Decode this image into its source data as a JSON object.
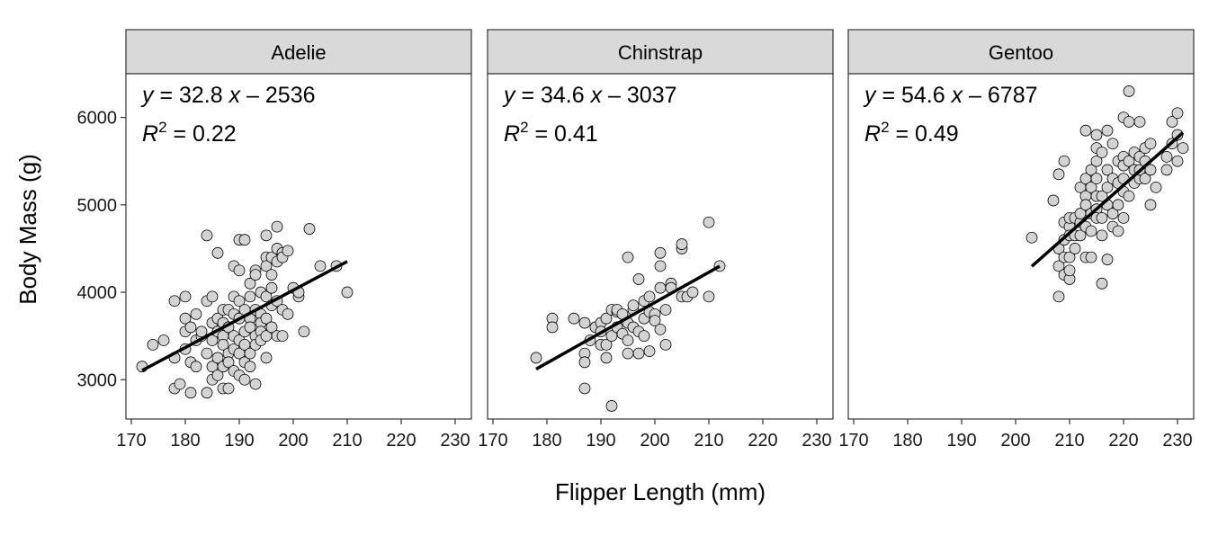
{
  "chart_data": {
    "type": "scatter",
    "xlabel": "Flipper Length (mm)",
    "ylabel": "Body Mass (g)",
    "xlim": [
      169,
      233
    ],
    "ylim": [
      2550,
      6500
    ],
    "xticks": [
      170,
      180,
      190,
      200,
      210,
      220,
      230
    ],
    "yticks": [
      3000,
      4000,
      5000,
      6000
    ],
    "grid": false,
    "point_color": "#d3d3d3",
    "point_edge_color": "#000000",
    "strip_color": "#d9d9d9",
    "line_color": "#000000",
    "panels": [
      {
        "name": "Adelie",
        "equation": {
          "y": "y",
          "eq": " = 32.8 ",
          "x": "x",
          "rest": " – 2536"
        },
        "r2": {
          "r": "R",
          "sup": "2",
          "rest": " = 0.22"
        },
        "fit": {
          "slope": 32.8,
          "intercept": -2536,
          "x_range": [
            172,
            210
          ]
        },
        "points": [
          [
            172,
            3150
          ],
          [
            174,
            3400
          ],
          [
            176,
            3450
          ],
          [
            178,
            3900
          ],
          [
            178,
            3250
          ],
          [
            178,
            2900
          ],
          [
            179,
            2950
          ],
          [
            180,
            3950
          ],
          [
            180,
            3700
          ],
          [
            180,
            3550
          ],
          [
            180,
            3350
          ],
          [
            181,
            3200
          ],
          [
            181,
            3600
          ],
          [
            181,
            2850
          ],
          [
            182,
            3450
          ],
          [
            182,
            3750
          ],
          [
            182,
            3150
          ],
          [
            183,
            3500
          ],
          [
            183,
            3550
          ],
          [
            184,
            4650
          ],
          [
            184,
            3900
          ],
          [
            184,
            3300
          ],
          [
            184,
            2850
          ],
          [
            185,
            3950
          ],
          [
            185,
            3650
          ],
          [
            185,
            3450
          ],
          [
            185,
            3150
          ],
          [
            185,
            3000
          ],
          [
            186,
            3700
          ],
          [
            186,
            3250
          ],
          [
            186,
            4450
          ],
          [
            186,
            3550
          ],
          [
            186,
            3050
          ],
          [
            187,
            3800
          ],
          [
            187,
            3500
          ],
          [
            187,
            3150
          ],
          [
            187,
            2900
          ],
          [
            187,
            3400
          ],
          [
            187,
            3650
          ],
          [
            188,
            3300
          ],
          [
            188,
            3600
          ],
          [
            188,
            3200
          ],
          [
            188,
            3800
          ],
          [
            188,
            2900
          ],
          [
            189,
            3500
          ],
          [
            189,
            3950
          ],
          [
            189,
            3350
          ],
          [
            189,
            3100
          ],
          [
            189,
            4300
          ],
          [
            189,
            3750
          ],
          [
            190,
            4600
          ],
          [
            190,
            4250
          ],
          [
            190,
            3700
          ],
          [
            190,
            3450
          ],
          [
            190,
            3300
          ],
          [
            190,
            3050
          ],
          [
            190,
            3900
          ],
          [
            191,
            3800
          ],
          [
            191,
            3550
          ],
          [
            191,
            3200
          ],
          [
            191,
            4600
          ],
          [
            191,
            3000
          ],
          [
            191,
            3400
          ],
          [
            192,
            3950
          ],
          [
            192,
            3700
          ],
          [
            192,
            3600
          ],
          [
            192,
            3300
          ],
          [
            192,
            4100
          ],
          [
            192,
            3150
          ],
          [
            193,
            4250
          ],
          [
            193,
            3800
          ],
          [
            193,
            3500
          ],
          [
            193,
            3400
          ],
          [
            193,
            2950
          ],
          [
            193,
            4200
          ],
          [
            194,
            4000
          ],
          [
            194,
            3750
          ],
          [
            194,
            3650
          ],
          [
            194,
            3550
          ],
          [
            194,
            3450
          ],
          [
            195,
            4400
          ],
          [
            195,
            4300
          ],
          [
            195,
            3950
          ],
          [
            195,
            3700
          ],
          [
            195,
            3500
          ],
          [
            195,
            3250
          ],
          [
            195,
            4650
          ],
          [
            196,
            4400
          ],
          [
            196,
            4050
          ],
          [
            196,
            3850
          ],
          [
            196,
            3600
          ],
          [
            196,
            4200
          ],
          [
            197,
            4750
          ],
          [
            197,
            4500
          ],
          [
            197,
            4350
          ],
          [
            197,
            3900
          ],
          [
            197,
            3500
          ],
          [
            198,
            4450
          ],
          [
            198,
            4400
          ],
          [
            198,
            3800
          ],
          [
            198,
            3500
          ],
          [
            199,
            4475
          ],
          [
            199,
            3750
          ],
          [
            200,
            4050
          ],
          [
            201,
            3950
          ],
          [
            201,
            4000
          ],
          [
            202,
            3550
          ],
          [
            203,
            4725
          ],
          [
            205,
            4300
          ],
          [
            208,
            4300
          ],
          [
            210,
            4000
          ]
        ]
      },
      {
        "name": "Chinstrap",
        "equation": {
          "y": "y",
          "eq": " = 34.6 ",
          "x": "x",
          "rest": " – 3037"
        },
        "r2": {
          "r": "R",
          "sup": "2",
          "rest": " = 0.41"
        },
        "fit": {
          "slope": 34.6,
          "intercept": -3037,
          "x_range": [
            178,
            212
          ]
        },
        "points": [
          [
            178,
            3250
          ],
          [
            181,
            3700
          ],
          [
            181,
            3600
          ],
          [
            185,
            3700
          ],
          [
            187,
            3650
          ],
          [
            187,
            3300
          ],
          [
            187,
            3200
          ],
          [
            187,
            2900
          ],
          [
            188,
            3450
          ],
          [
            189,
            3600
          ],
          [
            190,
            3650
          ],
          [
            190,
            3550
          ],
          [
            190,
            3400
          ],
          [
            191,
            3400
          ],
          [
            191,
            3700
          ],
          [
            191,
            3250
          ],
          [
            192,
            3800
          ],
          [
            192,
            3500
          ],
          [
            192,
            2700
          ],
          [
            193,
            3775
          ],
          [
            193,
            3800
          ],
          [
            193,
            3600
          ],
          [
            194,
            3750
          ],
          [
            194,
            3525
          ],
          [
            195,
            3650
          ],
          [
            195,
            4400
          ],
          [
            195,
            3300
          ],
          [
            195,
            3450
          ],
          [
            196,
            3800
          ],
          [
            196,
            3850
          ],
          [
            196,
            3600
          ],
          [
            197,
            3550
          ],
          [
            197,
            4150
          ],
          [
            197,
            3300
          ],
          [
            198,
            3900
          ],
          [
            198,
            3700
          ],
          [
            198,
            3500
          ],
          [
            199,
            3950
          ],
          [
            199,
            3775
          ],
          [
            199,
            3325
          ],
          [
            200,
            3750
          ],
          [
            200,
            3675
          ],
          [
            201,
            4450
          ],
          [
            201,
            4300
          ],
          [
            201,
            4050
          ],
          [
            201,
            3575
          ],
          [
            202,
            3800
          ],
          [
            202,
            3400
          ],
          [
            203,
            4100
          ],
          [
            203,
            4050
          ],
          [
            205,
            3950
          ],
          [
            205,
            4500
          ],
          [
            205,
            4550
          ],
          [
            206,
            3950
          ],
          [
            207,
            4000
          ],
          [
            210,
            4800
          ],
          [
            210,
            3950
          ],
          [
            212,
            4300
          ]
        ]
      },
      {
        "name": "Gentoo",
        "equation": {
          "y": "y",
          "eq": " = 54.6 ",
          "x": "x",
          "rest": " – 6787"
        },
        "r2": {
          "r": "R",
          "sup": "2",
          "rest": " = 0.49"
        },
        "fit": {
          "slope": 54.6,
          "intercept": -6787,
          "x_range": [
            203,
            231
          ]
        },
        "points": [
          [
            203,
            4625
          ],
          [
            207,
            5050
          ],
          [
            208,
            5350
          ],
          [
            208,
            4500
          ],
          [
            208,
            4300
          ],
          [
            208,
            3950
          ],
          [
            209,
            5500
          ],
          [
            209,
            4800
          ],
          [
            209,
            4600
          ],
          [
            209,
            4400
          ],
          [
            209,
            4200
          ],
          [
            210,
            4750
          ],
          [
            210,
            4850
          ],
          [
            210,
            4650
          ],
          [
            210,
            4400
          ],
          [
            210,
            4150
          ],
          [
            210,
            4250
          ],
          [
            211,
            4650
          ],
          [
            211,
            4500
          ],
          [
            211,
            4850
          ],
          [
            212,
            5200
          ],
          [
            212,
            4800
          ],
          [
            212,
            4650
          ],
          [
            212,
            4900
          ],
          [
            213,
            5850
          ],
          [
            213,
            5100
          ],
          [
            213,
            5000
          ],
          [
            213,
            4750
          ],
          [
            213,
            4400
          ],
          [
            213,
            5300
          ],
          [
            214,
            5400
          ],
          [
            214,
            5200
          ],
          [
            214,
            4700
          ],
          [
            214,
            4900
          ],
          [
            214,
            4400
          ],
          [
            215,
            5650
          ],
          [
            215,
            5500
          ],
          [
            215,
            5300
          ],
          [
            215,
            5100
          ],
          [
            215,
            4950
          ],
          [
            215,
            4850
          ],
          [
            215,
            5800
          ],
          [
            216,
            5600
          ],
          [
            216,
            5100
          ],
          [
            216,
            4650
          ],
          [
            216,
            4100
          ],
          [
            216,
            4850
          ],
          [
            217,
            5850
          ],
          [
            217,
            5400
          ],
          [
            217,
            5000
          ],
          [
            217,
            4375
          ],
          [
            217,
            5200
          ],
          [
            218,
            5700
          ],
          [
            218,
            5300
          ],
          [
            218,
            4900
          ],
          [
            218,
            4750
          ],
          [
            219,
            5500
          ],
          [
            219,
            5250
          ],
          [
            219,
            5000
          ],
          [
            219,
            4700
          ],
          [
            220,
            6000
          ],
          [
            220,
            5550
          ],
          [
            220,
            5300
          ],
          [
            220,
            5150
          ],
          [
            220,
            4850
          ],
          [
            220,
            5450
          ],
          [
            221,
            6300
          ],
          [
            221,
            5950
          ],
          [
            221,
            5500
          ],
          [
            221,
            5100
          ],
          [
            222,
            5400
          ],
          [
            222,
            5250
          ],
          [
            222,
            5600
          ],
          [
            223,
            5550
          ],
          [
            223,
            5300
          ],
          [
            223,
            5400
          ],
          [
            223,
            5950
          ],
          [
            224,
            5650
          ],
          [
            224,
            5500
          ],
          [
            224,
            5300
          ],
          [
            225,
            5700
          ],
          [
            225,
            5400
          ],
          [
            225,
            5000
          ],
          [
            226,
            5200
          ],
          [
            228,
            5550
          ],
          [
            228,
            5400
          ],
          [
            229,
            5950
          ],
          [
            229,
            5700
          ],
          [
            230,
            5800
          ],
          [
            230,
            6050
          ],
          [
            230,
            5500
          ],
          [
            231,
            5650
          ]
        ]
      }
    ]
  }
}
